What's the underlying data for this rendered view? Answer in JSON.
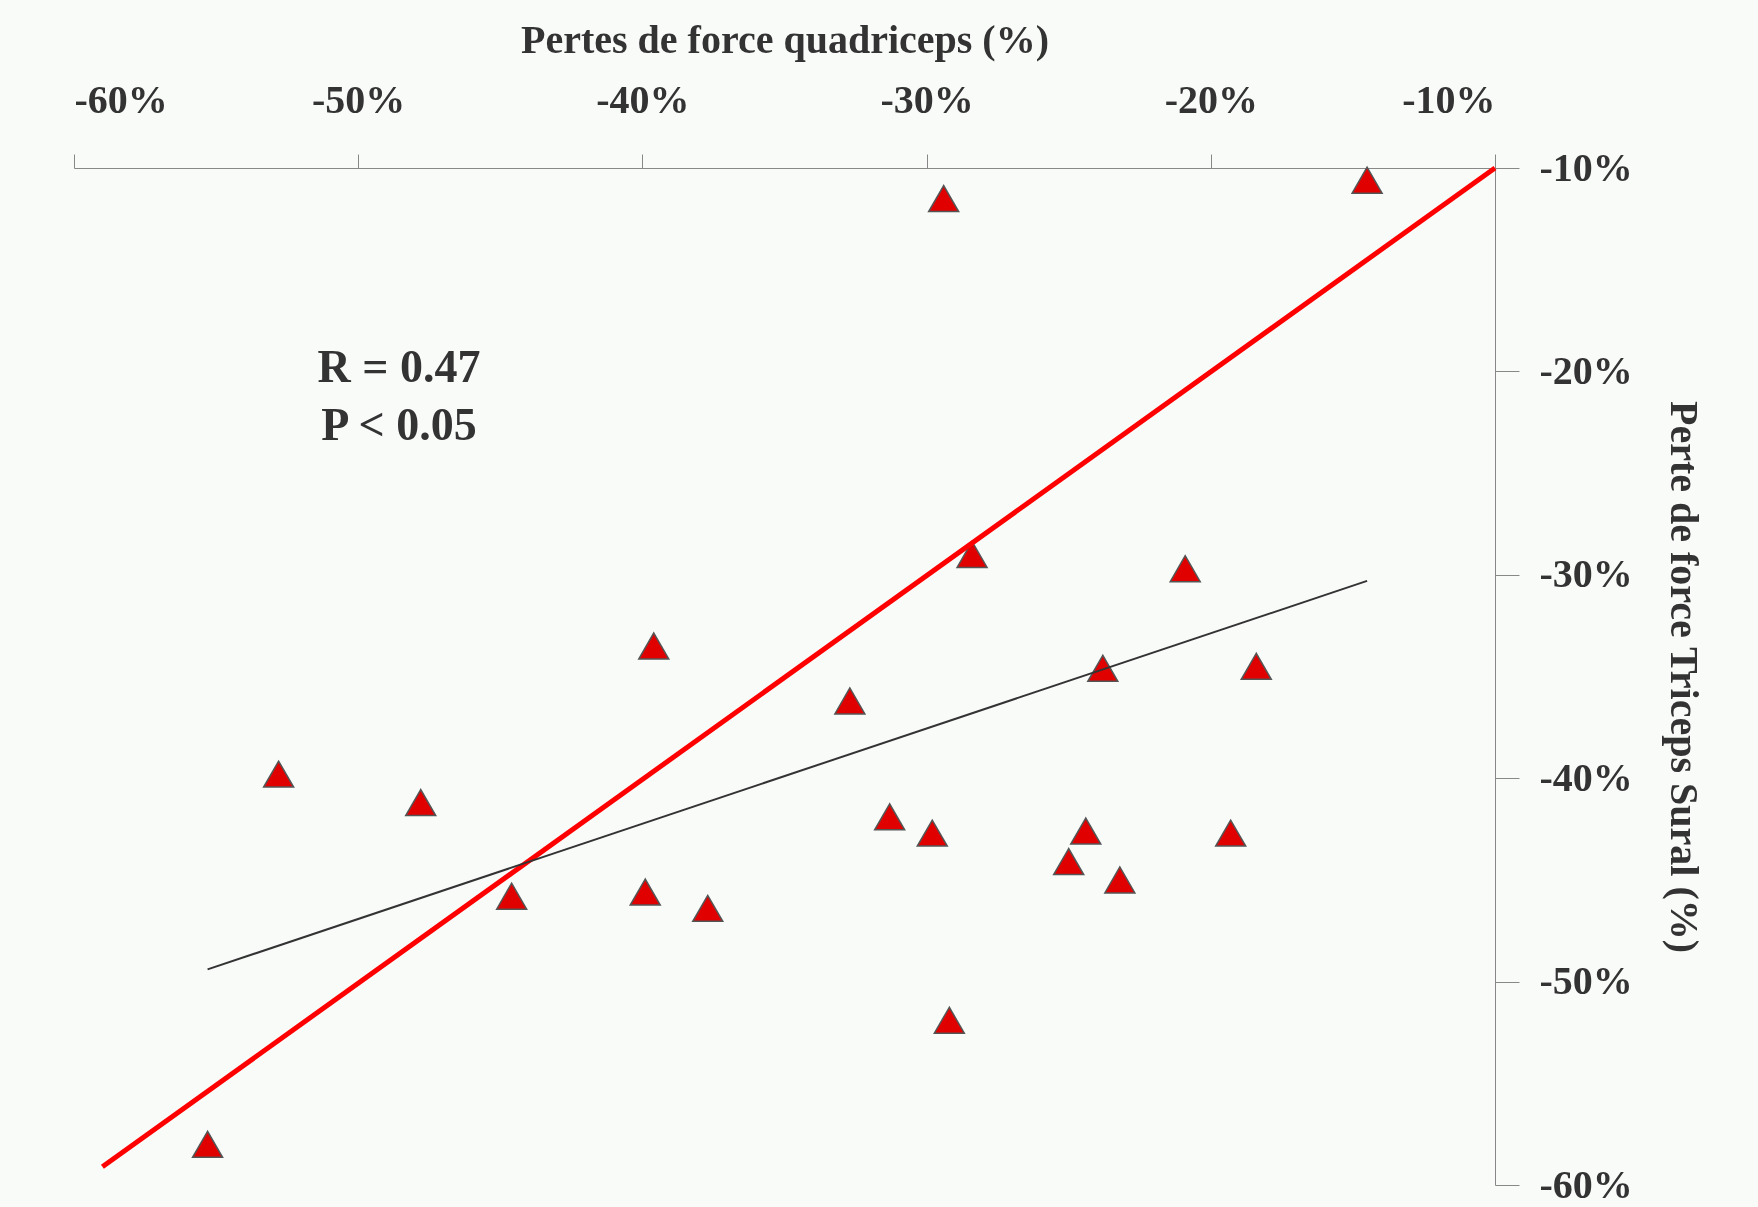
{
  "chart_data": {
    "type": "scatter",
    "xlabel": "Pertes de force quadriceps (%)",
    "ylabel": "Perte de force Triceps Sural (%)",
    "xlim": [
      -60,
      -10
    ],
    "ylim": [
      -60,
      -10
    ],
    "xticks": [
      {
        "value": -60,
        "label": "-60%"
      },
      {
        "value": -50,
        "label": "-50%"
      },
      {
        "value": -40,
        "label": "-40%"
      },
      {
        "value": -30,
        "label": "-30%"
      },
      {
        "value": -20,
        "label": "-20%"
      },
      {
        "value": -10,
        "label": "-10%"
      }
    ],
    "yticks": [
      {
        "value": -60,
        "label": "-60%"
      },
      {
        "value": -50,
        "label": "-50%"
      },
      {
        "value": -40,
        "label": "-40%"
      },
      {
        "value": -30,
        "label": "-30%"
      },
      {
        "value": -20,
        "label": "-20%"
      },
      {
        "value": -10,
        "label": "-10%"
      }
    ],
    "grid": false,
    "marker": "triangle",
    "annotations": [
      "R = 0.47",
      "P < 0.05"
    ],
    "series": [
      {
        "color": "#e00000",
        "x": [
          -29.4,
          -14.5,
          -28.4,
          -20.9,
          -39.6,
          -23.8,
          -18.4,
          -32.7,
          -52.8,
          -47.8,
          -31.3,
          -29.8,
          -24.4,
          -19.3,
          -25.0,
          -23.2,
          -44.6,
          -39.9,
          -37.7,
          -29.2,
          -55.3
        ],
        "values": [
          -11.5,
          -10.6,
          -29.0,
          -29.7,
          -33.5,
          -34.6,
          -34.5,
          -36.2,
          -39.8,
          -41.2,
          -41.9,
          -42.7,
          -42.6,
          -42.7,
          -44.1,
          -45.0,
          -45.8,
          -45.6,
          -46.4,
          -51.9,
          -58.0
        ]
      },
      {
        "type": "line",
        "color": "#ff0000",
        "marker": "none",
        "x": [
          -59.0,
          -10.0
        ],
        "values": [
          -59.1,
          -10.0
        ]
      },
      {
        "type": "line",
        "color": "#333333",
        "marker": "none",
        "x": [
          -55.3,
          -14.5
        ],
        "values": [
          -49.4,
          -30.3
        ]
      }
    ]
  }
}
